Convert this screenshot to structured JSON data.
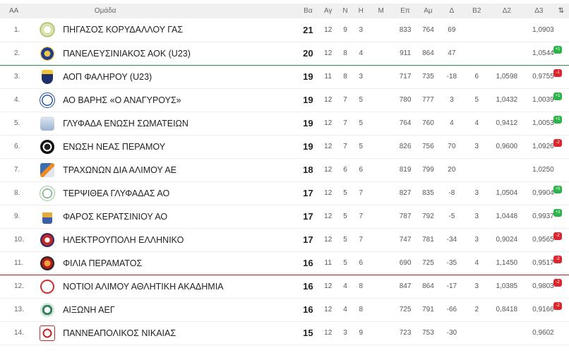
{
  "header": {
    "pos": "AA",
    "team": "Ομάδα",
    "points": "Βα",
    "games": "Αγ",
    "wins": "Ν",
    "losses": "Η",
    "forfeits": "Μ",
    "scored": "Επ",
    "against": "Αμ",
    "diff": "Δ",
    "b2": "Β2",
    "d2": "Δ2",
    "d3": "Δ3",
    "sort_icon": "⇅"
  },
  "colors": {
    "promotion_line": "#2e8b57",
    "relegation_line": "#b22222",
    "up_badge": "#2db34a",
    "down_badge": "#d9262f"
  },
  "rows": [
    {
      "pos": "1.",
      "logo": "pegasus-logo",
      "team": "ΠΗΓΑΣΟΣ ΚΟΡΥΔΑΛΛΟΥ ΓΑΣ",
      "pts": "21",
      "ag": "12",
      "n": "9",
      "h": "3",
      "m": "",
      "ep": "833",
      "am": "764",
      "d": "69",
      "b2": "",
      "d2": "",
      "d3": "1,0903",
      "chg": "",
      "chg_dir": "",
      "line": ""
    },
    {
      "pos": "2.",
      "logo": "paneleusiniakos-logo",
      "team": "ΠΑΝΕΛΕΥΣΙΝΙΑΚΟΣ ΑΟΚ (U23)",
      "pts": "20",
      "ag": "12",
      "n": "8",
      "h": "4",
      "m": "",
      "ep": "911",
      "am": "864",
      "d": "47",
      "b2": "",
      "d2": "",
      "d3": "1,0544",
      "chg": "+1",
      "chg_dir": "up",
      "line": "promo"
    },
    {
      "pos": "3.",
      "logo": "faliro-logo",
      "team": "ΑΟΠ ΦΑΛΗΡΟΥ (U23)",
      "pts": "19",
      "ag": "11",
      "n": "8",
      "h": "3",
      "m": "",
      "ep": "717",
      "am": "735",
      "d": "-18",
      "b2": "6",
      "d2": "1,0598",
      "d3": "0,9755",
      "chg": "-1",
      "chg_dir": "down",
      "line": ""
    },
    {
      "pos": "4.",
      "logo": "vari-logo",
      "team": "ΑΟ ΒΑΡΗΣ «Ο ΑΝΑΓΥΡΟΥΣ»",
      "pts": "19",
      "ag": "12",
      "n": "7",
      "h": "5",
      "m": "",
      "ep": "780",
      "am": "777",
      "d": "3",
      "b2": "5",
      "d2": "1,0432",
      "d3": "1,0039",
      "chg": "+1",
      "chg_dir": "up",
      "line": ""
    },
    {
      "pos": "5.",
      "logo": "glyfada-logo",
      "team": "ΓΛΥΦΑΔΑ ΕΝΩΣΗ ΣΩΜΑΤΕΙΩΝ",
      "pts": "19",
      "ag": "12",
      "n": "7",
      "h": "5",
      "m": "",
      "ep": "764",
      "am": "760",
      "d": "4",
      "b2": "4",
      "d2": "0,9412",
      "d3": "1,0053",
      "chg": "+1",
      "chg_dir": "up",
      "line": ""
    },
    {
      "pos": "6.",
      "logo": "perama-union-logo",
      "team": "ΕΝΩΣΗ ΝΕΑΣ ΠΕΡΑΜΟΥ",
      "pts": "19",
      "ag": "12",
      "n": "7",
      "h": "5",
      "m": "",
      "ep": "826",
      "am": "756",
      "d": "70",
      "b2": "3",
      "d2": "0,9600",
      "d3": "1,0926",
      "chg": "-2",
      "chg_dir": "down",
      "line": ""
    },
    {
      "pos": "7.",
      "logo": "trachones-logo",
      "team": "ΤΡΑΧΩΝΩΝ ΔΙΑ ΑΛΙΜΟΥ ΑΕ",
      "pts": "18",
      "ag": "12",
      "n": "6",
      "h": "6",
      "m": "",
      "ep": "819",
      "am": "799",
      "d": "20",
      "b2": "",
      "d2": "",
      "d3": "1,0250",
      "chg": "",
      "chg_dir": "",
      "line": ""
    },
    {
      "pos": "8.",
      "logo": "terpsithea-logo",
      "team": "ΤΕΡΨΙΘΕΑ ΓΛΥΦΑΔΑΣ ΑΟ",
      "pts": "17",
      "ag": "12",
      "n": "5",
      "h": "7",
      "m": "",
      "ep": "827",
      "am": "835",
      "d": "-8",
      "b2": "3",
      "d2": "1,0504",
      "d3": "0,9904",
      "chg": "+5",
      "chg_dir": "up",
      "line": ""
    },
    {
      "pos": "9.",
      "logo": "faros-logo",
      "team": "ΦΑΡΟΣ ΚΕΡΑΤΣΙΝΙΟΥ ΑΟ",
      "pts": "17",
      "ag": "12",
      "n": "5",
      "h": "7",
      "m": "",
      "ep": "787",
      "am": "792",
      "d": "-5",
      "b2": "3",
      "d2": "1,0448",
      "d3": "0,9937",
      "chg": "+3",
      "chg_dir": "up",
      "line": ""
    },
    {
      "pos": "10.",
      "logo": "ilektroupoli-logo",
      "team": "ΗΛΕΚΤΡΟΥΠΟΛΗ ΕΛΛΗΝΙΚΟ",
      "pts": "17",
      "ag": "12",
      "n": "5",
      "h": "7",
      "m": "",
      "ep": "747",
      "am": "781",
      "d": "-34",
      "b2": "3",
      "d2": "0,9024",
      "d3": "0,9565",
      "chg": "-2",
      "chg_dir": "down",
      "line": ""
    },
    {
      "pos": "11.",
      "logo": "filia-logo",
      "team": "ΦΙΛΙΑ ΠΕΡΑΜΑΤΟΣ",
      "pts": "16",
      "ag": "11",
      "n": "5",
      "h": "6",
      "m": "",
      "ep": "690",
      "am": "725",
      "d": "-35",
      "b2": "4",
      "d2": "1,1450",
      "d3": "0,9517",
      "chg": "-2",
      "chg_dir": "down",
      "line": "releg"
    },
    {
      "pos": "12.",
      "logo": "notioi-logo",
      "team": "ΝΟΤΙΟΙ ΑΛΙΜΟΥ ΑΘΛΗΤΙΚΗ ΑΚΑΔΗΜΙΑ",
      "pts": "16",
      "ag": "12",
      "n": "4",
      "h": "8",
      "m": "",
      "ep": "847",
      "am": "864",
      "d": "-17",
      "b2": "3",
      "d2": "1,0385",
      "d3": "0,9803",
      "chg": "-2",
      "chg_dir": "down",
      "line": ""
    },
    {
      "pos": "13.",
      "logo": "aixoni-logo",
      "team": "ΑΙΞΩΝΗ ΑΕΓ",
      "pts": "16",
      "ag": "12",
      "n": "4",
      "h": "8",
      "m": "",
      "ep": "725",
      "am": "791",
      "d": "-66",
      "b2": "2",
      "d2": "0,8418",
      "d3": "0,9166",
      "chg": "-2",
      "chg_dir": "down",
      "line": ""
    },
    {
      "pos": "14.",
      "logo": "panneapolikos-logo",
      "team": "ΠΑΝΝΕΑΠΟΛΙΚΟΣ ΝΙΚΑΙΑΣ",
      "pts": "15",
      "ag": "12",
      "n": "3",
      "h": "9",
      "m": "",
      "ep": "723",
      "am": "753",
      "d": "-30",
      "b2": "",
      "d2": "",
      "d3": "0,9602",
      "chg": "",
      "chg_dir": "",
      "line": ""
    }
  ]
}
